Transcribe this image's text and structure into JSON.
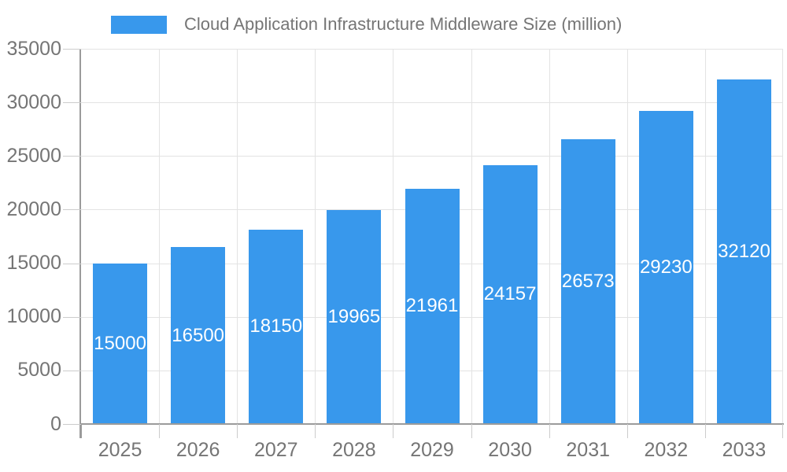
{
  "legend": {
    "label": "Cloud Application Infrastructure Middleware Size (million)"
  },
  "colors": {
    "bar": "#3898EC",
    "axis_line": "#9B9B9B",
    "tick_mark": "#CCCCCC",
    "gridline": "#E3E3E3",
    "axis_text": "#757575",
    "bar_label_text": "#FFFFFF",
    "background": "#FFFFFF"
  },
  "chart_data": {
    "type": "bar",
    "title": "Cloud Application Infrastructure Middleware Size (million)",
    "series": [
      {
        "name": "Cloud Application Infrastructure Middleware Size (million)",
        "values": [
          15000,
          16500,
          18150,
          19965,
          21961,
          24157,
          26573,
          29230,
          32120
        ]
      }
    ],
    "categories": [
      "2025",
      "2026",
      "2027",
      "2028",
      "2029",
      "2030",
      "2031",
      "2032",
      "2033"
    ],
    "bar_value_labels": [
      "15000",
      "16500",
      "18150",
      "19965",
      "21961",
      "24157",
      "26573",
      "29230",
      "32120"
    ],
    "xlabel": "",
    "ylabel": "",
    "ylim": [
      0,
      35000
    ],
    "ytick_interval": 5000,
    "yticks": [
      "0",
      "5000",
      "10000",
      "15000",
      "20000",
      "25000",
      "30000",
      "35000"
    ],
    "grid": true,
    "grid_vertical": true,
    "legend_position": "top-left",
    "value_label_position": "inside-center"
  }
}
